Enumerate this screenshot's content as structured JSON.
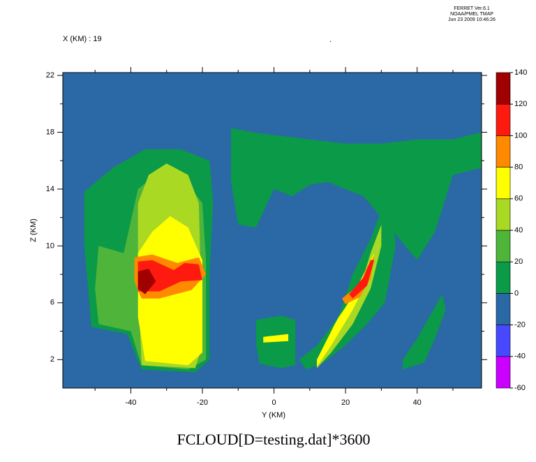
{
  "chart_data": {
    "type": "contour",
    "header": [
      "FERRET  Ver.6.1",
      "NOAA/PMEL TMAP",
      "Jun 23 2009 10:46:26"
    ],
    "subtitle": "X (KM) : 19",
    "mark": ".",
    "title": "FCLOUD[D=testing.dat]*3600",
    "xlabel": "Y (KM)",
    "ylabel": "Z (KM)",
    "xlim": [
      -59,
      58
    ],
    "ylim": [
      0,
      22.2
    ],
    "xticks": [
      -40,
      -20,
      0,
      20,
      40
    ],
    "xminor": [
      -50,
      -30,
      -10,
      10,
      30,
      50
    ],
    "yticks": [
      2,
      6,
      10,
      14,
      18,
      22
    ],
    "yminor": [
      4,
      8,
      12,
      16,
      20
    ],
    "levels": [
      -60,
      -40,
      -20,
      0,
      20,
      40,
      60,
      80,
      100,
      120,
      140
    ],
    "level_colors": [
      "#cc00ff",
      "#4848ff",
      "#2b68a6",
      "#0b9a48",
      "#4fb43a",
      "#a9d923",
      "#ffff00",
      "#ff8a00",
      "#ff1a10",
      "#a00000"
    ],
    "background_level": -20,
    "regions": [
      {
        "level": 0,
        "x": [
          -53,
          -45,
          -36,
          -26,
          -18,
          -17,
          -18,
          -18,
          -22,
          -37,
          -41,
          -51,
          -53
        ],
        "y": [
          13.8,
          15.5,
          16.8,
          16.8,
          16,
          13,
          8,
          2,
          1.1,
          1.3,
          3.8,
          4.3,
          10
        ]
      },
      {
        "level": 0,
        "x": [
          -12,
          -6,
          0,
          10,
          20,
          30,
          40,
          50,
          58,
          58,
          50,
          45,
          40,
          35,
          30,
          25,
          20,
          15,
          10,
          5,
          0,
          -5,
          -10,
          -12
        ],
        "y": [
          18.3,
          18,
          17.8,
          17.5,
          17.2,
          17.2,
          17.5,
          17.5,
          18,
          15.5,
          15,
          11,
          9,
          10.5,
          12,
          13.5,
          14,
          14.5,
          14.3,
          13.5,
          14,
          11.3,
          11.5,
          14.5
        ]
      },
      {
        "level": 0,
        "x": [
          7,
          12,
          18,
          22,
          27,
          30,
          33,
          34,
          31,
          26,
          20,
          14,
          9
        ],
        "y": [
          2,
          3,
          5,
          8,
          10.5,
          12.5,
          13,
          10,
          6,
          4.5,
          3,
          1.8,
          1.3
        ]
      },
      {
        "level": 0,
        "x": [
          -5,
          2,
          6,
          6,
          2,
          -4,
          -5
        ],
        "y": [
          4.8,
          5.1,
          4.8,
          1.6,
          1.4,
          1.7,
          3
        ]
      },
      {
        "level": 0,
        "x": [
          36,
          40,
          47,
          48,
          45,
          42,
          36
        ],
        "y": [
          2,
          3.5,
          6.6,
          5.5,
          3.5,
          1.8,
          1.3
        ]
      },
      {
        "level": 20,
        "x": [
          -49,
          -42,
          -38,
          -33,
          -26,
          -20,
          -19,
          -19,
          -24,
          -37,
          -40,
          -49,
          -50
        ],
        "y": [
          10,
          9.5,
          14,
          15,
          15,
          13,
          9,
          2,
          1.3,
          1.6,
          4,
          4.5,
          7
        ]
      },
      {
        "level": 40,
        "x": [
          -38,
          -35,
          -30,
          -24,
          -21,
          -20,
          -22,
          -37,
          -38
        ],
        "y": [
          13,
          15,
          15.8,
          15,
          13,
          3,
          1.4,
          1.6,
          8
        ]
      },
      {
        "level": 40,
        "x": [
          12,
          18,
          24,
          27,
          30,
          30,
          27,
          22,
          16,
          12
        ],
        "y": [
          2,
          5,
          7,
          9.5,
          11.5,
          10,
          7,
          4.5,
          2.5,
          1.4
        ]
      },
      {
        "level": 60,
        "x": [
          -38,
          -34,
          -29,
          -24,
          -20,
          -20,
          -24,
          -36,
          -38
        ],
        "y": [
          9.5,
          11,
          12.1,
          11.3,
          9,
          2.5,
          1.6,
          1.9,
          5
        ]
      },
      {
        "level": 60,
        "x": [
          12,
          17,
          22,
          26,
          28,
          27,
          22,
          16,
          12
        ],
        "y": [
          2,
          4.5,
          6.5,
          8.5,
          9.5,
          8,
          5.5,
          3,
          1.5
        ]
      },
      {
        "level": 60,
        "x": [
          -3,
          4,
          4,
          -3
        ],
        "y": [
          3.6,
          3.8,
          3.3,
          3.2
        ]
      },
      {
        "level": 80,
        "x": [
          -39,
          -34,
          -27,
          -21,
          -19,
          -23,
          -32,
          -37,
          -39
        ],
        "y": [
          9.2,
          9.4,
          8.8,
          9.2,
          8,
          6.9,
          6.3,
          6.3,
          7.5
        ]
      },
      {
        "level": 80,
        "x": [
          19,
          24,
          26,
          28,
          27,
          24,
          20
        ],
        "y": [
          6.3,
          7.3,
          8.5,
          9.3,
          7.7,
          6.4,
          5.9
        ]
      },
      {
        "level": 100,
        "x": [
          -38,
          -34,
          -28,
          -25,
          -21,
          -20,
          -26,
          -32,
          -38
        ],
        "y": [
          8.9,
          9,
          8.3,
          8.8,
          8.7,
          7.6,
          7.5,
          6.8,
          6.8
        ]
      },
      {
        "level": 100,
        "x": [
          21,
          25,
          27,
          28,
          26,
          22
        ],
        "y": [
          6.6,
          7.8,
          9,
          9,
          7.2,
          6.3
        ]
      },
      {
        "level": 120,
        "x": [
          -38,
          -35,
          -33,
          -36,
          -38
        ],
        "y": [
          8.2,
          8.4,
          7.5,
          6.6,
          7
        ]
      }
    ]
  }
}
